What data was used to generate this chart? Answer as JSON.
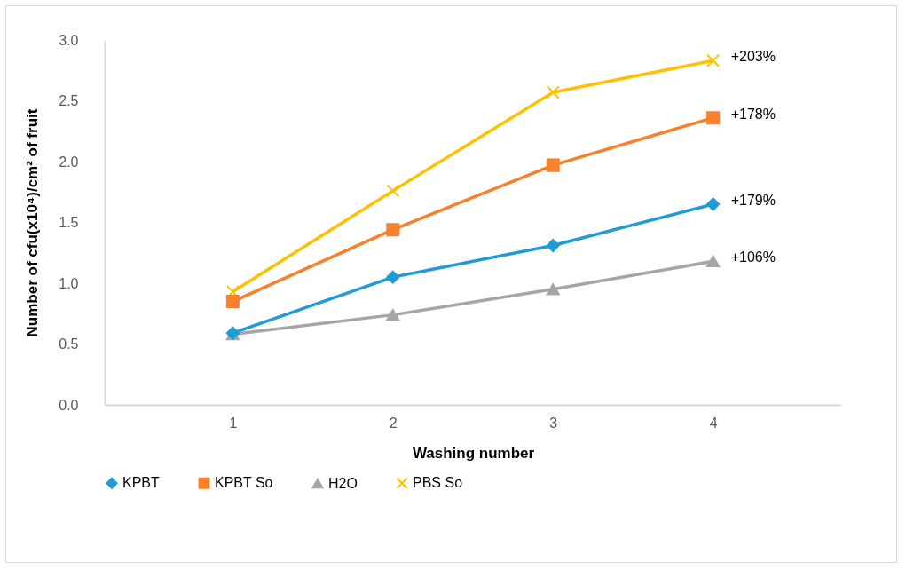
{
  "chart_data": {
    "type": "line",
    "xlabel": "Washing number",
    "ylabel": "Number of cfu(x10⁴)/cm² of fruit",
    "categories": [
      "1",
      "2",
      "3",
      "4"
    ],
    "series": [
      {
        "name": "KPBT",
        "color": "#1f9bd7",
        "marker": "diamond",
        "values": [
          0.59,
          1.05,
          1.31,
          1.65
        ]
      },
      {
        "name": "KPBT So",
        "color": "#f7802c",
        "marker": "square",
        "values": [
          0.85,
          1.44,
          1.97,
          2.36
        ]
      },
      {
        "name": "H2O",
        "color": "#a5a5a5",
        "marker": "triangle",
        "values": [
          0.58,
          0.74,
          0.95,
          1.18
        ]
      },
      {
        "name": "PBS So",
        "color": "#ffc000",
        "marker": "cross",
        "values": [
          0.93,
          1.76,
          2.57,
          2.83
        ]
      }
    ],
    "ylim": [
      0,
      3
    ],
    "yticks": [
      {
        "value": 0,
        "label": "0.0"
      },
      {
        "value": 0.5,
        "label": "0.5"
      },
      {
        "value": 1,
        "label": "1.0"
      },
      {
        "value": 1.5,
        "label": "1.5"
      },
      {
        "value": 2,
        "label": "2.0"
      },
      {
        "value": 2.5,
        "label": "2.5"
      },
      {
        "value": 3,
        "label": "3.0"
      }
    ],
    "annotations": [
      {
        "text": "+203%",
        "x": "4",
        "y": 2.83
      },
      {
        "text": "+178%",
        "x": "4",
        "y": 2.36
      },
      {
        "text": "+179%",
        "x": "4",
        "y": 1.65
      },
      {
        "text": "+106%",
        "x": "4",
        "y": 1.18
      }
    ],
    "grid": false,
    "legend": "bottom"
  }
}
